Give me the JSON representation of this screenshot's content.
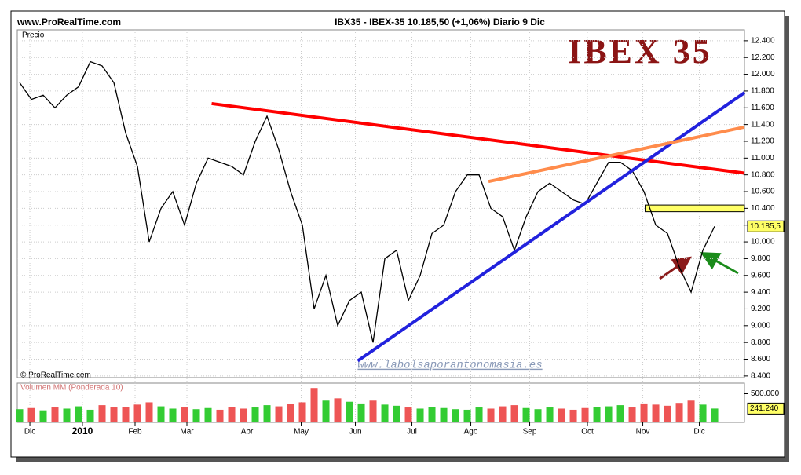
{
  "header": {
    "site": "www.ProRealTime.com",
    "quote": "IBX35 - IBEX-35    10.185,50 (+1,06%)    Diario  9 Dic",
    "copyright": "© ProRealTime.com",
    "watermark": "www.labolsaporantonomasia.es"
  },
  "chart_data": [
    {
      "type": "line",
      "title": "IBEX 35",
      "y_label": "Precio",
      "color": "#000000",
      "grid": true,
      "x": [
        0,
        1,
        2,
        3,
        4,
        5,
        6,
        7,
        8,
        9,
        10,
        11,
        12,
        13,
        14,
        15,
        16,
        17,
        18,
        19,
        20,
        21,
        22,
        23,
        24,
        25,
        26,
        27,
        28,
        29,
        30,
        31,
        32,
        33,
        34,
        35,
        36,
        37,
        38,
        39,
        40,
        41,
        42,
        43,
        44,
        45,
        46,
        47,
        48,
        49,
        50,
        51,
        52,
        53,
        54,
        55,
        56,
        57,
        58,
        59
      ],
      "values": [
        11900,
        11700,
        11750,
        11600,
        11750,
        11850,
        12150,
        12100,
        11900,
        11300,
        10900,
        10000,
        10400,
        10600,
        10200,
        10700,
        11000,
        10950,
        10900,
        10800,
        11200,
        11500,
        11100,
        10600,
        10200,
        9200,
        9600,
        9000,
        9300,
        9400,
        8800,
        9800,
        9900,
        9300,
        9600,
        10100,
        10200,
        10600,
        10800,
        10800,
        10400,
        10300,
        9900,
        10300,
        10600,
        10700,
        10600,
        10500,
        10450,
        10700,
        10950,
        10950,
        10850,
        10600,
        10200,
        10100,
        9700,
        9400,
        9900,
        10185.5
      ],
      "xlim": [
        -0.2,
        61.53
      ],
      "ylim": [
        8380,
        12530
      ],
      "xticks": [
        {
          "value": 0.87,
          "label": "Dic"
        },
        {
          "value": 5.33,
          "label": "2010"
        },
        {
          "value": 9.8,
          "label": "Feb"
        },
        {
          "value": 14.2,
          "label": "Mar"
        },
        {
          "value": 19.3,
          "label": "Abr"
        },
        {
          "value": 23.9,
          "label": "May"
        },
        {
          "value": 28.5,
          "label": "Jun"
        },
        {
          "value": 33.3,
          "label": "Jul"
        },
        {
          "value": 38.3,
          "label": "Ago"
        },
        {
          "value": 43.3,
          "label": "Sep"
        },
        {
          "value": 48.2,
          "label": "Oct"
        },
        {
          "value": 52.9,
          "label": "Nov"
        },
        {
          "value": 57.7,
          "label": "Dic"
        }
      ],
      "yticks": [
        {
          "value": 8400,
          "label": "8.400"
        },
        {
          "value": 8600,
          "label": "8.600"
        },
        {
          "value": 8800,
          "label": "8.800"
        },
        {
          "value": 9000,
          "label": "9.000"
        },
        {
          "value": 9200,
          "label": "9.200"
        },
        {
          "value": 9400,
          "label": "9.400"
        },
        {
          "value": 9600,
          "label": "9.600"
        },
        {
          "value": 9800,
          "label": "9.800"
        },
        {
          "value": 10000,
          "label": "10.000"
        },
        {
          "value": 10200,
          "label": "10.200"
        },
        {
          "value": 10400,
          "label": "10.400"
        },
        {
          "value": 10600,
          "label": "10.600"
        },
        {
          "value": 10800,
          "label": "10.800"
        },
        {
          "value": 11000,
          "label": "11.000"
        },
        {
          "value": 11200,
          "label": "11.200"
        },
        {
          "value": 11400,
          "label": "11.400"
        },
        {
          "value": 11600,
          "label": "11.600"
        },
        {
          "value": 11800,
          "label": "11.800"
        },
        {
          "value": 12000,
          "label": "12.000"
        },
        {
          "value": 12200,
          "label": "12.200"
        },
        {
          "value": 12400,
          "label": "12.400"
        }
      ],
      "last_label": {
        "value": 10185.5,
        "label": "10.185,5"
      },
      "trendlines": [
        {
          "color": "#ff0000",
          "x": [
            16.3,
            61.53
          ],
          "y": [
            11650,
            10820
          ]
        },
        {
          "color": "#2222dd",
          "x": [
            28.7,
            61.53
          ],
          "y": [
            8580,
            11780
          ]
        },
        {
          "color": "#ff8c4c",
          "x": [
            39.8,
            61.53
          ],
          "y": [
            10720,
            11370
          ]
        }
      ],
      "box": {
        "color": "#ffff66",
        "x": [
          53.1,
          61.53
        ],
        "y": [
          10360,
          10440
        ]
      }
    },
    {
      "type": "bar",
      "y_label": "Volumen MM (Ponderada 10)",
      "up_color": "#33cc33",
      "down_color": "#ee5555",
      "x": [
        0,
        1,
        2,
        3,
        4,
        5,
        6,
        7,
        8,
        9,
        10,
        11,
        12,
        13,
        14,
        15,
        16,
        17,
        18,
        19,
        20,
        21,
        22,
        23,
        24,
        25,
        26,
        27,
        28,
        29,
        30,
        31,
        32,
        33,
        34,
        35,
        36,
        37,
        38,
        39,
        40,
        41,
        42,
        43,
        44,
        45,
        46,
        47,
        48,
        49,
        50,
        51,
        52,
        53,
        54,
        55,
        56,
        57,
        58,
        59
      ],
      "values": [
        230000,
        250000,
        210000,
        260000,
        240000,
        280000,
        220000,
        300000,
        260000,
        270000,
        310000,
        350000,
        280000,
        240000,
        260000,
        230000,
        250000,
        220000,
        270000,
        240000,
        260000,
        300000,
        280000,
        320000,
        350000,
        600000,
        380000,
        420000,
        360000,
        330000,
        380000,
        310000,
        290000,
        260000,
        240000,
        270000,
        250000,
        230000,
        220000,
        260000,
        240000,
        280000,
        300000,
        250000,
        230000,
        260000,
        240000,
        220000,
        250000,
        270000,
        280000,
        300000,
        260000,
        330000,
        310000,
        290000,
        340000,
        380000,
        310000,
        241240
      ],
      "xlim": [
        -0.2,
        61.53
      ],
      "ylim": [
        0,
        685000
      ],
      "yticks": [
        {
          "value": 500000,
          "label": "500.000"
        }
      ],
      "last_label": {
        "value": 241240,
        "label": "241.240"
      }
    }
  ]
}
